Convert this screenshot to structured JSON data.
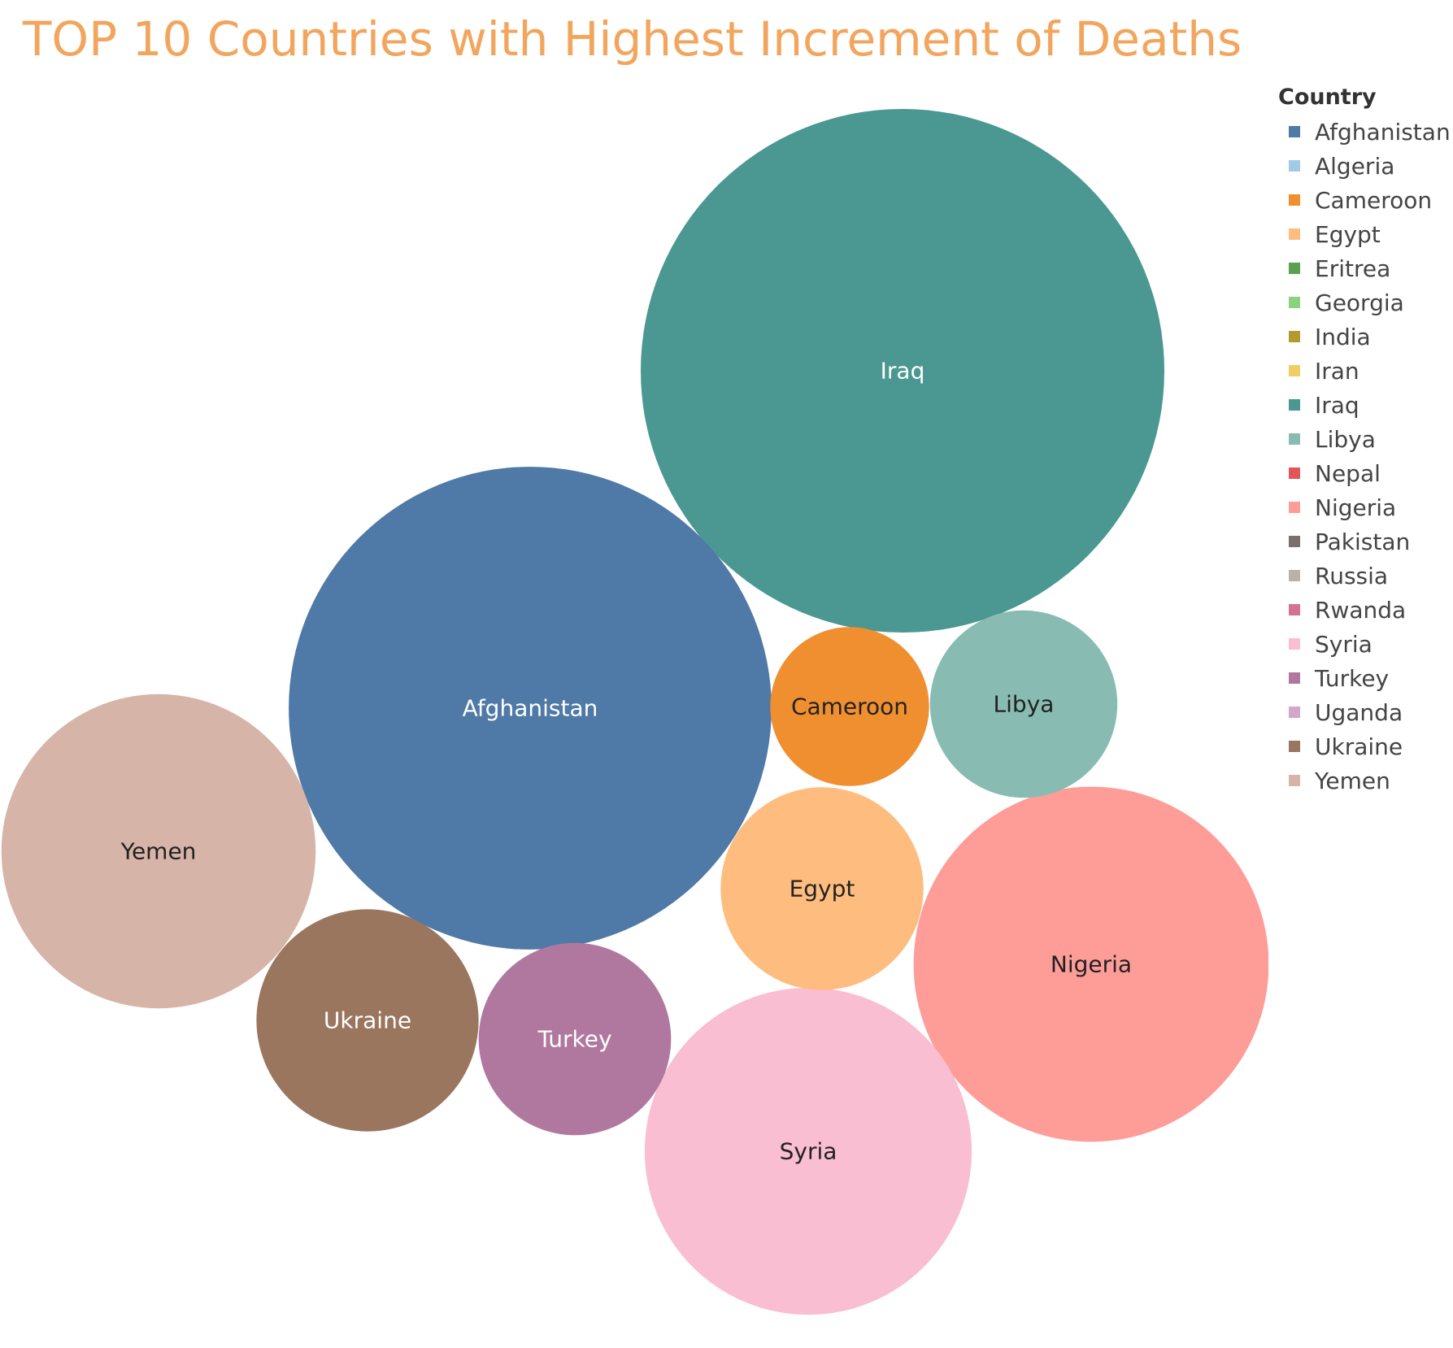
{
  "title": "TOP 10 Countries with Highest Increment of Deaths",
  "chart_data": {
    "type": "bubble",
    "title": "TOP 10 Countries with Highest Increment of Deaths",
    "legend_title": "Country",
    "legend_placement": "right",
    "series": [
      {
        "name": "Iraq",
        "relative_size": 1.0,
        "color": "#4a9891",
        "label_color": "#ffffff"
      },
      {
        "name": "Afghanistan",
        "relative_size": 0.85,
        "color": "#4f79a6",
        "label_color": "#ffffff"
      },
      {
        "name": "Nigeria",
        "relative_size": 0.46,
        "color": "#fe9c98",
        "label_color": "#222222"
      },
      {
        "name": "Syria",
        "relative_size": 0.39,
        "color": "#f9bed1",
        "label_color": "#222222"
      },
      {
        "name": "Yemen",
        "relative_size": 0.36,
        "color": "#d6b4a7",
        "label_color": "#222222"
      },
      {
        "name": "Ukraine",
        "relative_size": 0.18,
        "color": "#9b765f",
        "label_color": "#ffffff"
      },
      {
        "name": "Egypt",
        "relative_size": 0.15,
        "color": "#febd7f",
        "label_color": "#222222"
      },
      {
        "name": "Turkey",
        "relative_size": 0.135,
        "color": "#b0789f",
        "label_color": "#ffffff"
      },
      {
        "name": "Libya",
        "relative_size": 0.128,
        "color": "#88bcb3",
        "label_color": "#222222"
      },
      {
        "name": "Cameroon",
        "relative_size": 0.092,
        "color": "#f08f2f",
        "label_color": "#222222"
      }
    ],
    "legend": [
      {
        "name": "Afghanistan",
        "color": "#4f79a6"
      },
      {
        "name": "Algeria",
        "color": "#a0cbe7"
      },
      {
        "name": "Cameroon",
        "color": "#f08f2f"
      },
      {
        "name": "Egypt",
        "color": "#febd7f"
      },
      {
        "name": "Eritrea",
        "color": "#59a14f"
      },
      {
        "name": "Georgia",
        "color": "#8cd17d"
      },
      {
        "name": "India",
        "color": "#b6992d"
      },
      {
        "name": "Iran",
        "color": "#f1ce63"
      },
      {
        "name": "Iraq",
        "color": "#4a9891"
      },
      {
        "name": "Libya",
        "color": "#88bcb3"
      },
      {
        "name": "Nepal",
        "color": "#e15759"
      },
      {
        "name": "Nigeria",
        "color": "#fe9c98"
      },
      {
        "name": "Pakistan",
        "color": "#79706e"
      },
      {
        "name": "Russia",
        "color": "#bab0ac"
      },
      {
        "name": "Rwanda",
        "color": "#d37295"
      },
      {
        "name": "Syria",
        "color": "#f9bed1"
      },
      {
        "name": "Turkey",
        "color": "#b0789f"
      },
      {
        "name": "Uganda",
        "color": "#d4a6c8"
      },
      {
        "name": "Ukraine",
        "color": "#9b765f"
      },
      {
        "name": "Yemen",
        "color": "#d6b4a7"
      }
    ]
  }
}
